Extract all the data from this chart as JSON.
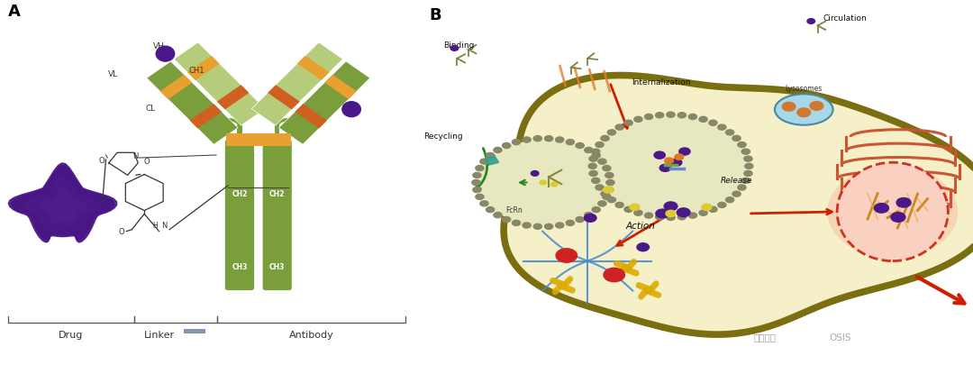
{
  "fig_width": 10.8,
  "fig_height": 4.05,
  "dpi": 100,
  "background_color": "#ffffff",
  "panel_A_label": "A",
  "panel_B_label": "B",
  "ab_dark": "#7a9e3b",
  "ab_light": "#b5cc7a",
  "ab_orange": "#e8a030",
  "ab_orange2": "#d06020",
  "drug_purple": "#4a1888",
  "linker_blue": "#7080aa",
  "cell_fill": "#f5f0c8",
  "cell_border": "#7a6e10",
  "endo_fill": "#e8e8c0",
  "endo_dot": "#888870",
  "er_color": "#cc5533",
  "nuc_fill": "#f8d0c0",
  "nuc_border": "#cc3322",
  "mt_blue": "#4488cc",
  "chr_gold": "#ddaa00",
  "red_arrow": "#cc2000",
  "green_arrow": "#228820",
  "text_dark": "#222222",
  "label_drug": "Drug",
  "label_linker": "Linker",
  "label_antibody": "Antibody",
  "label_VH": "VH",
  "label_VL": "VL",
  "label_CH1": "CH1",
  "label_CL": "CL",
  "label_CH2": "CH2",
  "label_CH3": "CH3",
  "label_Binding": "Binding",
  "label_Internalization": "Internalization",
  "label_Circulation": "Circulation",
  "label_Lysosomes": "Lysosomes",
  "label_Release": "Release",
  "label_FcRn": "FcRn",
  "label_Recycling": "Recycling",
  "label_Action": "Action",
  "watermark": "无癌家园"
}
